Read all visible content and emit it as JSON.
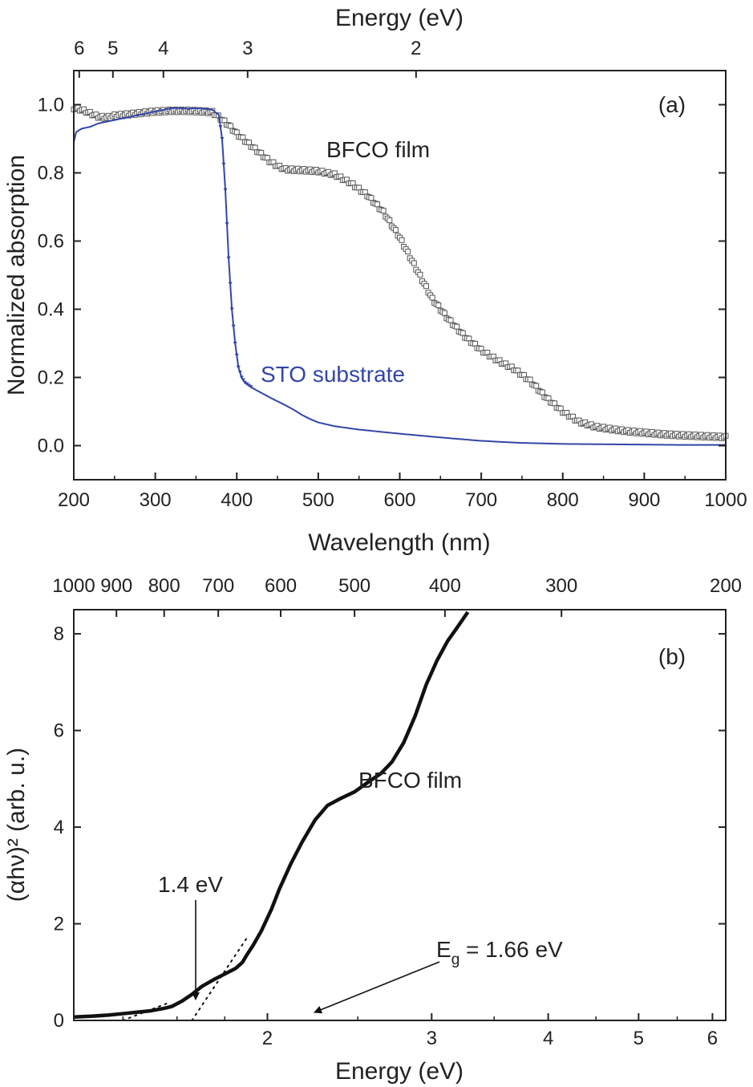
{
  "chart_data": [
    {
      "type": "scatter",
      "panel_label": "(a)",
      "xlabel": "Wavelength (nm)",
      "x_ticks": [
        "200",
        "300",
        "400",
        "500",
        "600",
        "700",
        "800",
        "900",
        "1000"
      ],
      "xlim": [
        200,
        1000
      ],
      "ylabel": "Normalized absorption",
      "y_ticks": [
        "0.0",
        "0.2",
        "0.4",
        "0.6",
        "0.8",
        "1.0"
      ],
      "ylim": [
        -0.1,
        1.1
      ],
      "top_axis_label": "Energy (eV)",
      "top_ticks": [
        {
          "label": "6",
          "ev": 6
        },
        {
          "label": "5",
          "ev": 5
        },
        {
          "label": "4",
          "ev": 4
        },
        {
          "label": "3",
          "ev": 3
        },
        {
          "label": "2",
          "ev": 2
        }
      ],
      "series": [
        {
          "name": "BFCO film",
          "color": "#555555",
          "marker": "open-square",
          "points": [
            [
              200,
              0.99
            ],
            [
              210,
              0.985
            ],
            [
              220,
              0.975
            ],
            [
              230,
              0.965
            ],
            [
              240,
              0.962
            ],
            [
              250,
              0.968
            ],
            [
              260,
              0.97
            ],
            [
              280,
              0.975
            ],
            [
              300,
              0.98
            ],
            [
              320,
              0.982
            ],
            [
              340,
              0.982
            ],
            [
              360,
              0.98
            ],
            [
              370,
              0.978
            ],
            [
              380,
              0.96
            ],
            [
              385,
              0.95
            ],
            [
              390,
              0.94
            ],
            [
              400,
              0.915
            ],
            [
              410,
              0.895
            ],
            [
              420,
              0.875
            ],
            [
              430,
              0.855
            ],
            [
              440,
              0.835
            ],
            [
              450,
              0.82
            ],
            [
              460,
              0.81
            ],
            [
              480,
              0.808
            ],
            [
              500,
              0.805
            ],
            [
              520,
              0.795
            ],
            [
              540,
              0.77
            ],
            [
              560,
              0.735
            ],
            [
              580,
              0.685
            ],
            [
              600,
              0.61
            ],
            [
              620,
              0.52
            ],
            [
              640,
              0.43
            ],
            [
              660,
              0.37
            ],
            [
              680,
              0.32
            ],
            [
              700,
              0.28
            ],
            [
              720,
              0.25
            ],
            [
              740,
              0.225
            ],
            [
              760,
              0.19
            ],
            [
              780,
              0.14
            ],
            [
              800,
              0.1
            ],
            [
              820,
              0.07
            ],
            [
              840,
              0.055
            ],
            [
              860,
              0.048
            ],
            [
              880,
              0.042
            ],
            [
              900,
              0.038
            ],
            [
              920,
              0.034
            ],
            [
              940,
              0.031
            ],
            [
              960,
              0.029
            ],
            [
              980,
              0.027
            ],
            [
              1000,
              0.025
            ]
          ]
        },
        {
          "name": "STO substrate",
          "color": "#3346a8",
          "marker": "down-triangle",
          "points": [
            [
              200,
              0.89
            ],
            [
              203,
              0.92
            ],
            [
              210,
              0.93
            ],
            [
              220,
              0.935
            ],
            [
              230,
              0.945
            ],
            [
              240,
              0.95
            ],
            [
              250,
              0.955
            ],
            [
              260,
              0.96
            ],
            [
              270,
              0.965
            ],
            [
              280,
              0.97
            ],
            [
              290,
              0.975
            ],
            [
              300,
              0.98
            ],
            [
              310,
              0.985
            ],
            [
              320,
              0.99
            ],
            [
              330,
              0.99
            ],
            [
              340,
              0.988
            ],
            [
              350,
              0.99
            ],
            [
              360,
              0.988
            ],
            [
              370,
              0.985
            ],
            [
              378,
              0.97
            ],
            [
              382,
              0.9
            ],
            [
              386,
              0.75
            ],
            [
              390,
              0.55
            ],
            [
              394,
              0.4
            ],
            [
              398,
              0.3
            ],
            [
              402,
              0.23
            ],
            [
              406,
              0.2
            ],
            [
              410,
              0.185
            ],
            [
              420,
              0.168
            ],
            [
              430,
              0.155
            ],
            [
              440,
              0.142
            ],
            [
              450,
              0.13
            ],
            [
              460,
              0.118
            ],
            [
              470,
              0.105
            ],
            [
              480,
              0.09
            ],
            [
              490,
              0.078
            ],
            [
              500,
              0.068
            ],
            [
              520,
              0.057
            ],
            [
              550,
              0.047
            ],
            [
              600,
              0.035
            ],
            [
              650,
              0.024
            ],
            [
              700,
              0.014
            ],
            [
              750,
              0.008
            ],
            [
              800,
              0.005
            ],
            [
              850,
              0.004
            ],
            [
              900,
              0.003
            ],
            [
              950,
              0.002
            ],
            [
              1000,
              0.002
            ]
          ]
        }
      ],
      "annotations": [
        "BFCO film",
        "STO substrate"
      ]
    },
    {
      "type": "scatter",
      "panel_label": "(b)",
      "xlabel": "Energy (eV)",
      "x_scale": "log",
      "x_ticks": [
        {
          "label": "2",
          "ev": 2
        },
        {
          "label": "3",
          "ev": 3
        },
        {
          "label": "4",
          "ev": 4
        },
        {
          "label": "5",
          "ev": 5
        },
        {
          "label": "6",
          "ev": 6
        }
      ],
      "xlim": [
        1.24,
        6.2
      ],
      "ylabel": "(αhν)² (arb. u.)",
      "y_ticks": [
        "0",
        "2",
        "4",
        "6",
        "8"
      ],
      "ylim": [
        0,
        8.5
      ],
      "top_axis_label": "",
      "top_ticks": [
        {
          "label": "1000",
          "nm": 1000
        },
        {
          "label": "900",
          "nm": 900
        },
        {
          "label": "800",
          "nm": 800
        },
        {
          "label": "700",
          "nm": 700
        },
        {
          "label": "600",
          "nm": 600
        },
        {
          "label": "500",
          "nm": 500
        },
        {
          "label": "400",
          "nm": 400
        },
        {
          "label": "300",
          "nm": 300
        },
        {
          "label": "200",
          "nm": 200
        }
      ],
      "series": [
        {
          "name": "BFCO film",
          "color": "#111111",
          "marker": "dot",
          "points": [
            [
              1.24,
              0.07
            ],
            [
              1.3,
              0.09
            ],
            [
              1.35,
              0.11
            ],
            [
              1.4,
              0.14
            ],
            [
              1.45,
              0.17
            ],
            [
              1.5,
              0.2
            ],
            [
              1.55,
              0.25
            ],
            [
              1.58,
              0.29
            ],
            [
              1.62,
              0.4
            ],
            [
              1.66,
              0.54
            ],
            [
              1.7,
              0.7
            ],
            [
              1.75,
              0.84
            ],
            [
              1.8,
              0.96
            ],
            [
              1.85,
              1.08
            ],
            [
              1.88,
              1.2
            ],
            [
              1.9,
              1.35
            ],
            [
              1.93,
              1.55
            ],
            [
              1.97,
              1.85
            ],
            [
              2.02,
              2.3
            ],
            [
              2.06,
              2.72
            ],
            [
              2.12,
              3.25
            ],
            [
              2.18,
              3.7
            ],
            [
              2.25,
              4.15
            ],
            [
              2.32,
              4.45
            ],
            [
              2.4,
              4.6
            ],
            [
              2.48,
              4.73
            ],
            [
              2.56,
              4.92
            ],
            [
              2.65,
              5.12
            ],
            [
              2.72,
              5.35
            ],
            [
              2.8,
              5.75
            ],
            [
              2.88,
              6.3
            ],
            [
              2.96,
              6.95
            ],
            [
              3.04,
              7.45
            ],
            [
              3.12,
              7.85
            ],
            [
              3.2,
              8.15
            ],
            [
              3.28,
              8.45
            ]
          ]
        }
      ],
      "fit_lines": [
        {
          "name": "fit-1.4eV",
          "from": [
            1.4,
            0.0
          ],
          "to": [
            1.56,
            0.35
          ]
        },
        {
          "name": "fit-Eg",
          "from": [
            1.66,
            0.0
          ],
          "to": [
            1.9,
            1.7
          ]
        }
      ],
      "annotations": {
        "film_label": "BFCO film",
        "arrow_label_1": "1.4 eV",
        "eg_prefix": "E",
        "eg_sub": "g",
        "eg_value": " = 1.66 eV"
      }
    }
  ]
}
